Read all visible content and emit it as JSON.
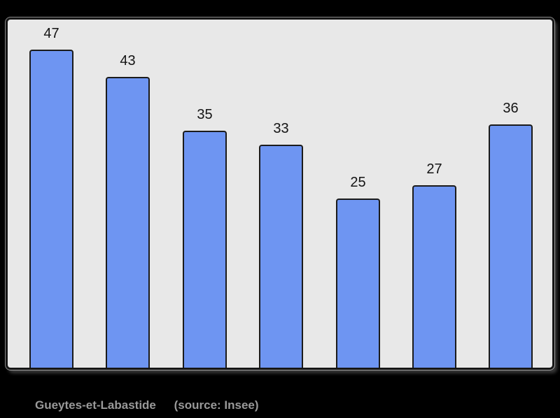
{
  "page": {
    "background_color": "#000000"
  },
  "chart_data": {
    "type": "bar",
    "values": [
      47,
      43,
      35,
      33,
      25,
      27,
      36
    ],
    "value_labels": [
      "47",
      "43",
      "35",
      "33",
      "25",
      "27",
      "36"
    ],
    "title": "",
    "xlabel": "",
    "ylabel": "",
    "grid": false,
    "legend_position": "none",
    "bar_color": "#6e95f2",
    "bar_border_color": "#1b1b1b",
    "panel_background": "#e8e8e8",
    "panel_border_color": "#161616",
    "value_label_color": "#141414"
  },
  "caption": {
    "location": "Gueytes-et-Labastide",
    "source": "(source: Insee)",
    "color": "#999999"
  }
}
